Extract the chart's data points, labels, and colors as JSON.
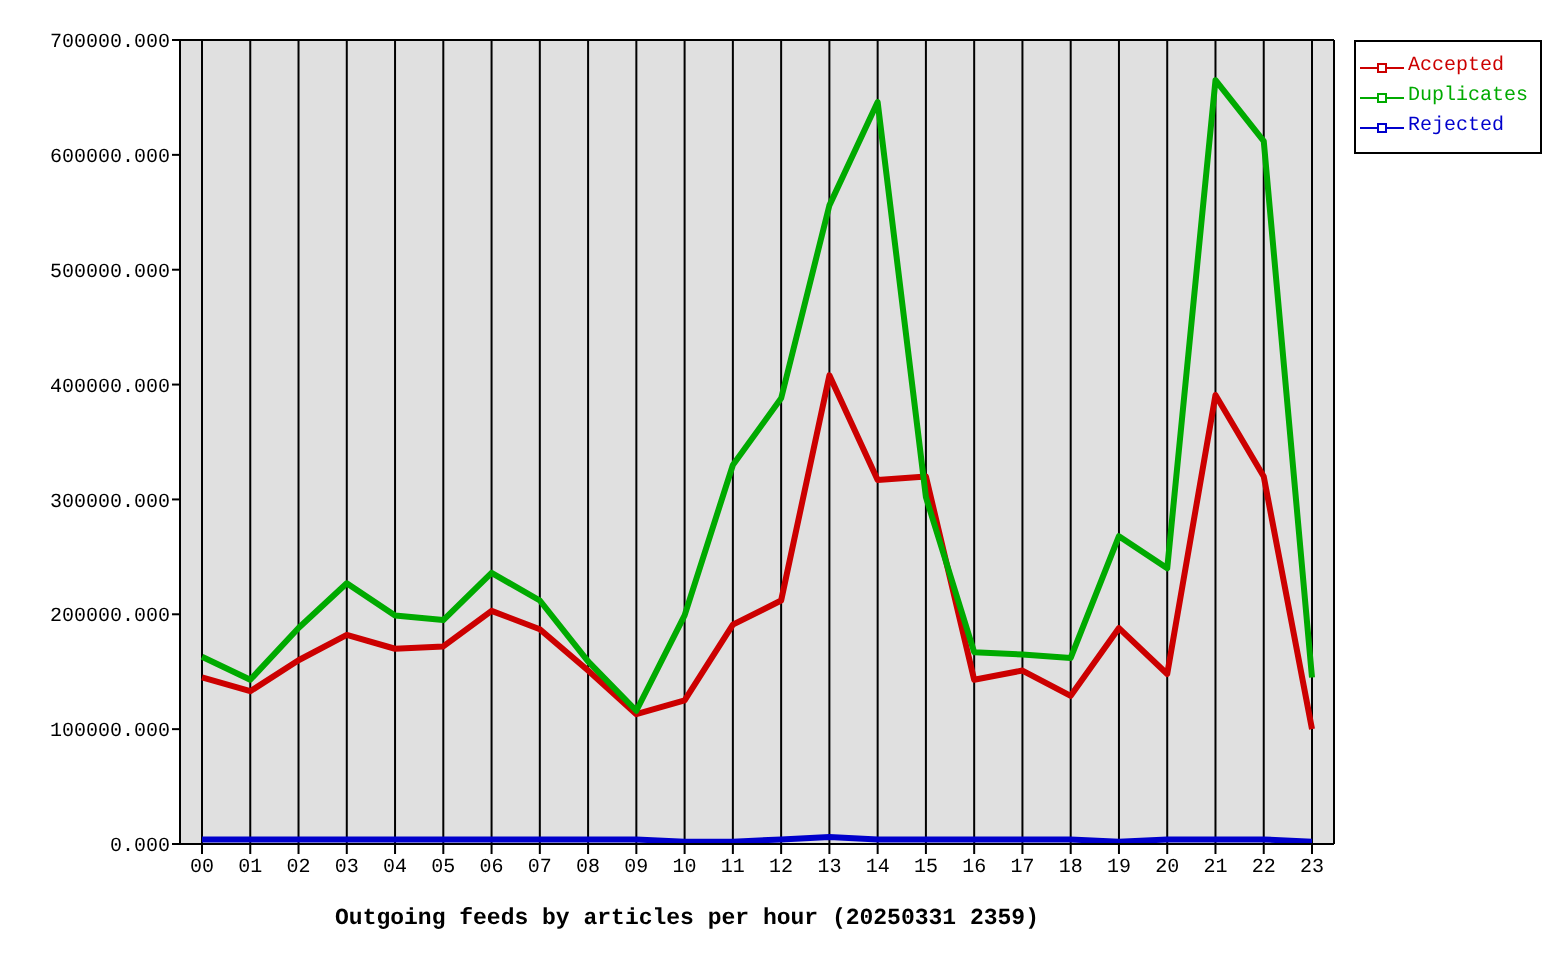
{
  "chart_data": {
    "type": "line",
    "xlabel": "Outgoing feeds by articles per hour (20250331 2359)",
    "categories": [
      "00",
      "01",
      "02",
      "03",
      "04",
      "05",
      "06",
      "07",
      "08",
      "09",
      "10",
      "11",
      "12",
      "13",
      "14",
      "15",
      "16",
      "17",
      "18",
      "19",
      "20",
      "21",
      "22",
      "23"
    ],
    "series": [
      {
        "name": "Accepted",
        "color": "#cc0000",
        "values": [
          145000,
          133000,
          160000,
          182000,
          170000,
          172000,
          203000,
          187000,
          151000,
          113000,
          125000,
          191000,
          212000,
          408000,
          317000,
          320000,
          143000,
          151000,
          129000,
          188000,
          148000,
          391000,
          320000,
          100000
        ]
      },
      {
        "name": "Duplicates",
        "color": "#00aa00",
        "values": [
          163000,
          143000,
          188000,
          227000,
          199000,
          195000,
          236000,
          212000,
          159000,
          116000,
          199000,
          330000,
          388000,
          556000,
          646000,
          302000,
          167000,
          165000,
          162000,
          268000,
          240000,
          665000,
          612000,
          145000
        ]
      },
      {
        "name": "Rejected",
        "color": "#0000cc",
        "values": [
          4000,
          4000,
          4000,
          4000,
          4000,
          4000,
          4000,
          4000,
          4000,
          4000,
          2000,
          2000,
          4000,
          6000,
          4000,
          4000,
          4000,
          4000,
          4000,
          2000,
          4000,
          4000,
          4000,
          2000
        ]
      }
    ],
    "ylim": [
      0,
      700000
    ],
    "yticks": [
      {
        "value": 0,
        "label": "0.000"
      },
      {
        "value": 100000,
        "label": "100000.000"
      },
      {
        "value": 200000,
        "label": "200000.000"
      },
      {
        "value": 300000,
        "label": "300000.000"
      },
      {
        "value": 400000,
        "label": "400000.000"
      },
      {
        "value": 500000,
        "label": "500000.000"
      },
      {
        "value": 600000,
        "label": "600000.000"
      },
      {
        "value": 700000,
        "label": "700000.000"
      }
    ],
    "grid": true,
    "legend": "top right"
  }
}
